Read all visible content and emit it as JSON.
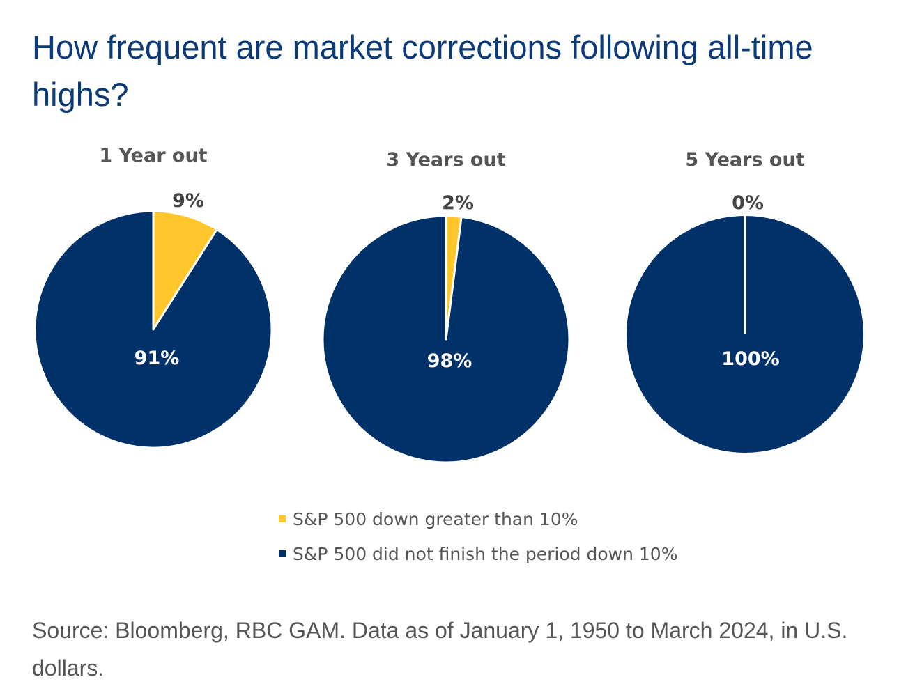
{
  "title": "How frequent are market corrections following all-time highs?",
  "colors": {
    "down": "#FFC72C",
    "not_down": "#003168",
    "title": "#0a3a78"
  },
  "chart_data": [
    {
      "type": "pie",
      "title": "1 Year out",
      "slices": [
        {
          "name": "S&P 500 down greater than 10%",
          "value": 9,
          "label": "9%"
        },
        {
          "name": "S&P 500 did not finish the period down 10%",
          "value": 91,
          "label": "91%"
        }
      ]
    },
    {
      "type": "pie",
      "title": "3 Years out",
      "slices": [
        {
          "name": "S&P 500 down greater than 10%",
          "value": 2,
          "label": "2%"
        },
        {
          "name": "S&P 500 did not finish the period down 10%",
          "value": 98,
          "label": "98%"
        }
      ]
    },
    {
      "type": "pie",
      "title": "5 Years out",
      "slices": [
        {
          "name": "S&P 500 down greater than 10%",
          "value": 0,
          "label": "0%"
        },
        {
          "name": "S&P 500 did not finish the period down 10%",
          "value": 100,
          "label": "100%"
        }
      ]
    }
  ],
  "legend": [
    "S&P 500 down greater than 10%",
    "S&P 500 did not finish the period down 10%"
  ],
  "source": "Source: Bloomberg, RBC GAM. Data as of January 1, 1950 to March 2024, in U.S. dollars."
}
